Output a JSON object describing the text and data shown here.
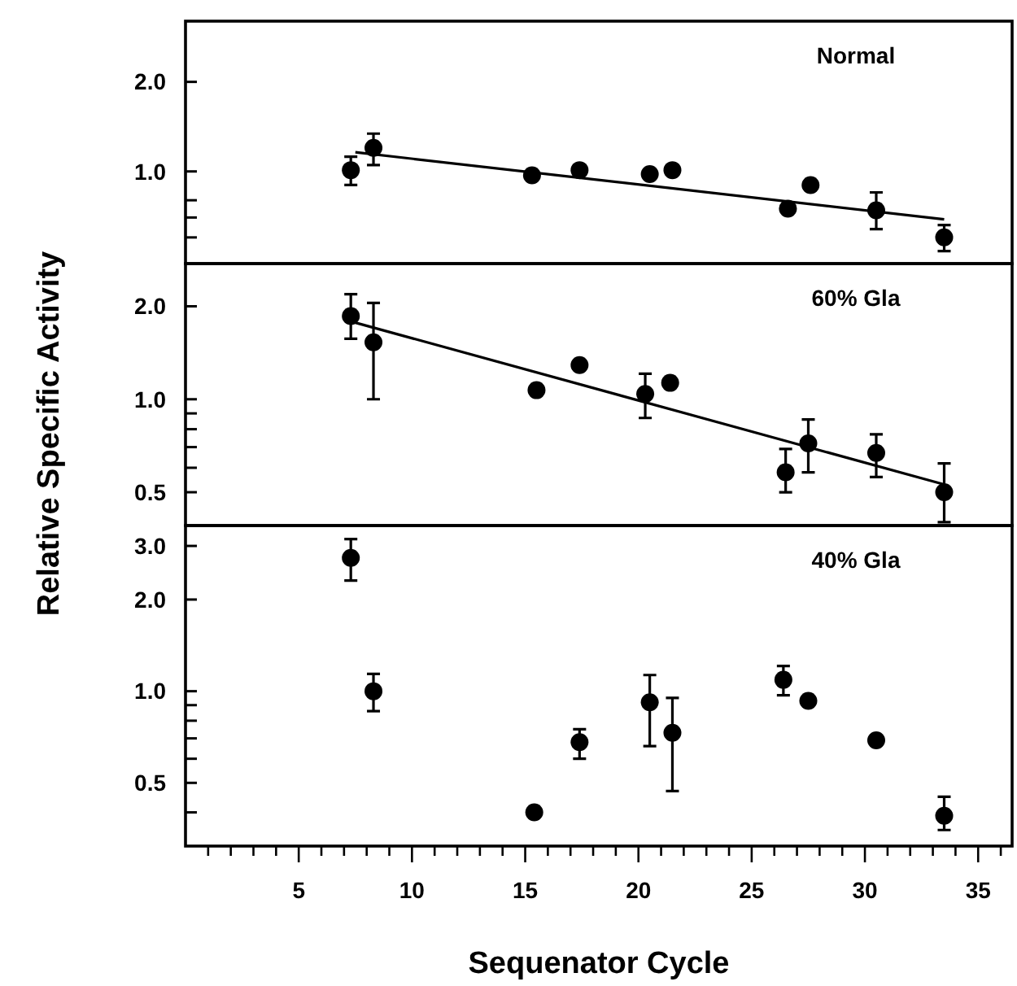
{
  "chart_data": [
    {
      "type": "scatter",
      "annotations": [
        "Normal"
      ],
      "log": true,
      "xlim": [
        0,
        36.5
      ],
      "ylim": [
        0.49,
        3.2
      ],
      "yticks": [
        {
          "value": 2,
          "label": "2.0"
        },
        {
          "value": 1,
          "label": "1.0"
        },
        {
          "value": 0.8,
          "label": null
        },
        {
          "value": 0.7,
          "label": null
        },
        {
          "value": 0.6,
          "label": null
        }
      ],
      "tick_labels": "y",
      "series": [
        {
          "color": "#000000",
          "marker": "circle",
          "x": [
            7.3,
            8.3,
            15.3,
            17.4,
            20.5,
            21.5,
            26.6,
            27.6,
            30.5,
            33.5
          ],
          "values": [
            1.01,
            1.2,
            0.97,
            1.01,
            0.98,
            1.01,
            0.75,
            0.9,
            0.74,
            0.6
          ],
          "errors": [
            [
              0.9,
              1.12
            ],
            [
              1.05,
              1.34
            ],
            null,
            null,
            null,
            null,
            null,
            null,
            [
              0.64,
              0.85
            ],
            [
              0.54,
              0.66
            ]
          ]
        },
        {
          "type": "line",
          "color": "#000000",
          "x": [
            7.5,
            33.5
          ],
          "values": [
            1.16,
            0.69
          ]
        }
      ]
    },
    {
      "type": "scatter",
      "annotations": [
        "60% Gla"
      ],
      "ylabel": "Relative Specific Activity",
      "log": true,
      "xlim": [
        0,
        36.5
      ],
      "ylim": [
        0.39,
        2.75
      ],
      "yticks": [
        {
          "value": 2,
          "label": "2.0"
        },
        {
          "value": 1,
          "label": "1.0"
        },
        {
          "value": 0.9,
          "label": null
        },
        {
          "value": 0.8,
          "label": null
        },
        {
          "value": 0.7,
          "label": null
        },
        {
          "value": 0.6,
          "label": null
        },
        0.5
      ],
      "tick_labels": "y",
      "series": [
        {
          "color": "#000000",
          "marker": "circle",
          "x": [
            7.3,
            8.3,
            15.5,
            17.4,
            20.3,
            21.4,
            26.5,
            27.5,
            30.5,
            33.5
          ],
          "values": [
            1.86,
            1.53,
            1.07,
            1.29,
            1.04,
            1.13,
            0.58,
            0.72,
            0.67,
            0.5
          ],
          "errors": [
            [
              1.57,
              2.19
            ],
            [
              1.0,
              2.05
            ],
            null,
            null,
            [
              0.87,
              1.21
            ],
            null,
            [
              0.5,
              0.69
            ],
            [
              0.58,
              0.86
            ],
            [
              0.56,
              0.77
            ],
            [
              0.4,
              0.62
            ]
          ]
        },
        {
          "type": "line",
          "color": "#000000",
          "x": [
            7.5,
            33.5
          ],
          "values": [
            1.77,
            0.53
          ]
        }
      ]
    },
    {
      "type": "scatter",
      "annotations": [
        "40% Gla"
      ],
      "xlabel": "Sequenator Cycle",
      "log": true,
      "marker": "circle",
      "xlim": [
        0,
        36.5
      ],
      "ylim": [
        0.31,
        3.5
      ],
      "xticks": [
        {
          "value": 1,
          "label": null
        },
        {
          "value": 2,
          "label": null
        },
        {
          "value": 3,
          "label": null
        },
        {
          "value": 4,
          "label": null
        },
        5,
        {
          "value": 6,
          "label": null
        },
        {
          "value": 7,
          "label": null
        },
        {
          "value": 8,
          "label": null
        },
        {
          "value": 9,
          "label": null
        },
        10,
        {
          "value": 11,
          "label": null
        },
        {
          "value": 12,
          "label": null
        },
        {
          "value": 13,
          "label": null
        },
        {
          "value": 14,
          "label": null
        },
        15,
        {
          "value": 16,
          "label": null
        },
        {
          "value": 17,
          "label": null
        },
        {
          "value": 18,
          "label": null
        },
        {
          "value": 19,
          "label": null
        },
        20,
        {
          "value": 21,
          "label": null
        },
        {
          "value": 22,
          "label": null
        },
        {
          "value": 23,
          "label": null
        },
        {
          "value": 24,
          "label": null
        },
        25,
        {
          "value": 26,
          "label": null
        },
        {
          "value": 27,
          "label": null
        },
        {
          "value": 28,
          "label": null
        },
        {
          "value": 29,
          "label": null
        },
        30,
        {
          "value": 31,
          "label": null
        },
        {
          "value": 32,
          "label": null
        },
        {
          "value": 33,
          "label": null
        },
        {
          "value": 34,
          "label": null
        },
        35,
        {
          "value": 36,
          "label": null
        }
      ],
      "yticks": [
        {
          "value": 3,
          "label": "3.0"
        },
        {
          "value": 2,
          "label": "2.0"
        },
        {
          "value": 1,
          "label": "1.0"
        },
        {
          "value": 0.9,
          "label": null
        },
        {
          "value": 0.8,
          "label": null
        },
        {
          "value": 0.7,
          "label": null
        },
        {
          "value": 0.6,
          "label": null
        },
        0.5,
        {
          "value": 0.4,
          "label": null
        }
      ],
      "series": [
        {
          "color": "#000000",
          "x": [
            7.3,
            8.3,
            15.4,
            17.4,
            20.5,
            21.5,
            26.4,
            27.5,
            30.5,
            33.5
          ],
          "values": [
            2.74,
            1.0,
            0.4,
            0.68,
            0.92,
            0.73,
            1.09,
            0.93,
            0.69,
            0.39
          ],
          "errors": [
            [
              2.31,
              3.16
            ],
            [
              0.86,
              1.14
            ],
            null,
            [
              0.6,
              0.75
            ],
            [
              0.66,
              1.13
            ],
            [
              0.47,
              0.95
            ],
            [
              0.97,
              1.21
            ],
            null,
            null,
            [
              0.35,
              0.45
            ]
          ]
        }
      ]
    }
  ]
}
